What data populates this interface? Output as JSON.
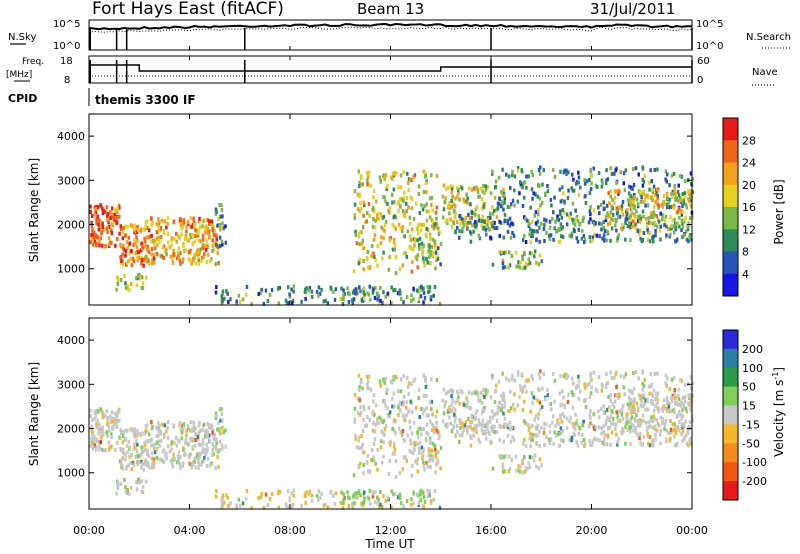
{
  "header": {
    "title": "Fort Hays East (fitACF)",
    "beam": "Beam 13",
    "date": "31/Jul/2011"
  },
  "top_panels": {
    "nsky_label": "N.Sky",
    "nsearch_label": "N.Search",
    "noise_ticks": [
      "10^5",
      "10^0"
    ],
    "freq_label_1": "Freq.",
    "freq_label_2": "[MHz]",
    "freq_ticks": [
      "18",
      "8"
    ],
    "nave_label": "Nave",
    "nave_ticks": [
      "60",
      "0"
    ],
    "cpid_label": "CPID",
    "cpid_value": "themis 3300 IF"
  },
  "x_axis": {
    "label": "Time UT",
    "ticks": [
      "00:00",
      "04:00",
      "08:00",
      "12:00",
      "16:00",
      "20:00",
      "00:00"
    ]
  },
  "y_axis": {
    "label": "Slant Range [km]",
    "ticks": [
      "1000",
      "2000",
      "3000",
      "4000"
    ]
  },
  "power_colorbar": {
    "label": "Power [dB]",
    "ticks": [
      "4",
      "8",
      "12",
      "16",
      "20",
      "24",
      "28"
    ],
    "colors": [
      "#1515e6",
      "#2b56b8",
      "#2e8c5a",
      "#7ab84a",
      "#e6d21e",
      "#f2a11c",
      "#f2641a",
      "#e61a1a"
    ]
  },
  "velocity_colorbar": {
    "label": "Velocity [m s",
    "label_sup": "-1",
    "label_end": "]",
    "ticks": [
      "200",
      "100",
      "50",
      "15",
      "-15",
      "-50",
      "-100",
      "-200"
    ],
    "colors": [
      "#2a2ad6",
      "#2e7fa6",
      "#2e9c4a",
      "#7ed05a",
      "#c8c8c8",
      "#f5b82a",
      "#f28a1e",
      "#ee5a14",
      "#e61a1a"
    ]
  },
  "chart_data": {
    "type": "heatmap",
    "title": "Fort Hays East (fitACF)",
    "subtitle": "Beam 13",
    "date": "31/Jul/2011",
    "xlabel": "Time UT",
    "ylabel": "Slant Range [km]",
    "xlim_hours": [
      0,
      24
    ],
    "ylim_km": [
      180,
      4500
    ],
    "panels": [
      "Power [dB]",
      "Velocity [m s^-1]"
    ],
    "power_range_db": [
      0,
      32
    ],
    "velocity_range_ms": [
      -250,
      250
    ],
    "frequency_steps_mhz": [
      {
        "start_h": 0.0,
        "end_h": 2.0,
        "value": 15
      },
      {
        "start_h": 2.0,
        "end_h": 14.0,
        "value": 12
      },
      {
        "start_h": 14.0,
        "end_h": 24.0,
        "value": 14
      }
    ],
    "scatter_regions": [
      {
        "t0": 0.0,
        "t1": 1.2,
        "r0": 1500,
        "r1": 2450,
        "p": 26,
        "v": 0,
        "d": 0.95
      },
      {
        "t0": 1.2,
        "t1": 2.2,
        "r0": 1050,
        "r1": 2000,
        "p": 24,
        "v": 0,
        "d": 0.85
      },
      {
        "t0": 2.2,
        "t1": 5.2,
        "r0": 1100,
        "r1": 2150,
        "p": 22,
        "v": 0,
        "d": 0.8
      },
      {
        "t0": 1.0,
        "t1": 2.3,
        "r0": 500,
        "r1": 900,
        "p": 18,
        "v": 0,
        "d": 0.5
      },
      {
        "t0": 5.0,
        "t1": 5.4,
        "r0": 1500,
        "r1": 2500,
        "p": 8,
        "v": 0,
        "d": 0.5
      },
      {
        "t0": 5.0,
        "t1": 14.0,
        "r0": 200,
        "r1": 600,
        "p": 10,
        "v": -15,
        "d": 0.3
      },
      {
        "t0": 10.0,
        "t1": 13.5,
        "r0": 300,
        "r1": 600,
        "p": 10,
        "v": 20,
        "d": 0.55
      },
      {
        "t0": 10.5,
        "t1": 13.8,
        "r0": 900,
        "r1": 3200,
        "p": 18,
        "v": 0,
        "d": 0.35
      },
      {
        "t0": 13.0,
        "t1": 14.0,
        "r0": 1100,
        "r1": 2000,
        "p": 14,
        "v": 0,
        "d": 0.5
      },
      {
        "t0": 14.0,
        "t1": 16.5,
        "r0": 1900,
        "r1": 2900,
        "p": 16,
        "v": 0,
        "d": 0.5
      },
      {
        "t0": 14.5,
        "t1": 24.0,
        "r0": 1600,
        "r1": 2300,
        "p": 10,
        "v": 0,
        "d": 0.45
      },
      {
        "t0": 16.0,
        "t1": 24.0,
        "r0": 2300,
        "r1": 3300,
        "p": 10,
        "v": 0,
        "d": 0.3
      },
      {
        "t0": 16.0,
        "t1": 18.0,
        "r0": 1000,
        "r1": 1400,
        "p": 14,
        "v": 0,
        "d": 0.5
      },
      {
        "t0": 20.5,
        "t1": 24.0,
        "r0": 1900,
        "r1": 2800,
        "p": 18,
        "v": 0,
        "d": 0.5
      }
    ]
  }
}
